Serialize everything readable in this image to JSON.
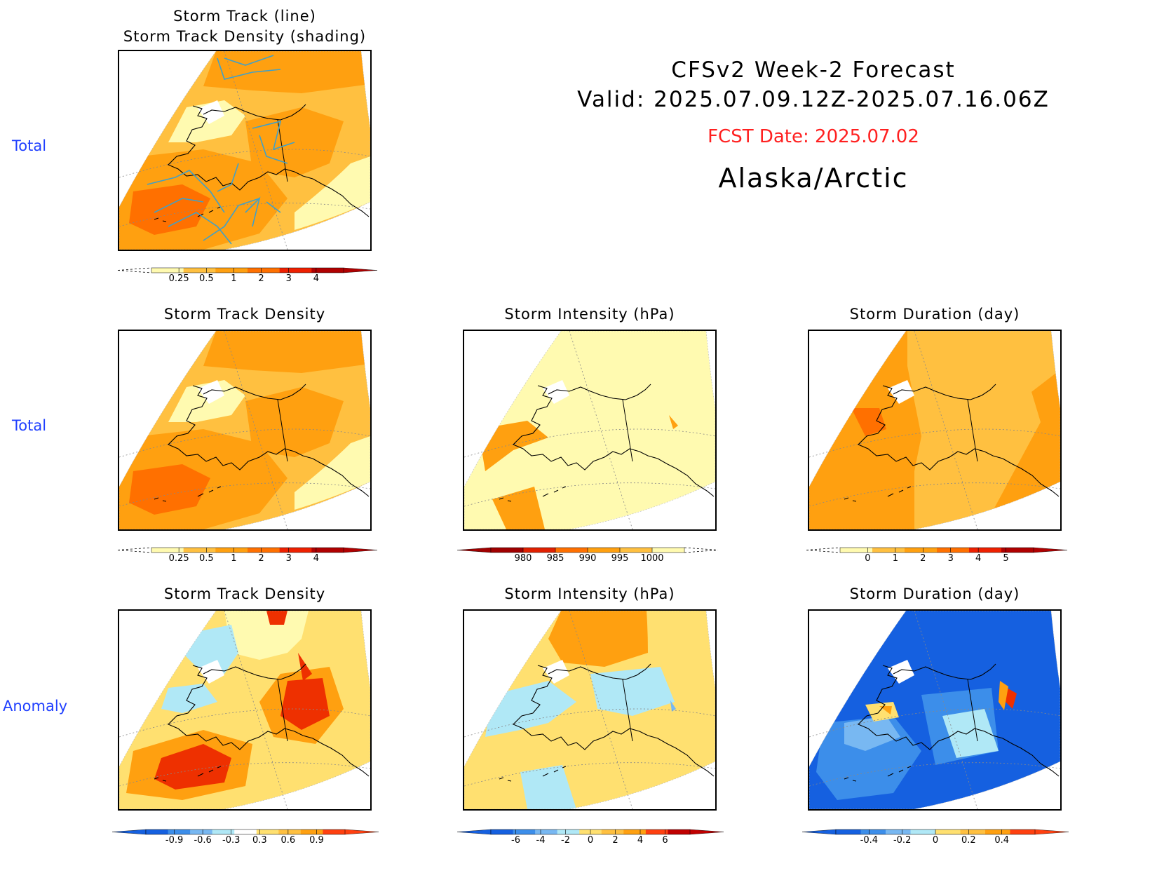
{
  "header": {
    "line1": "CFSv2 Week-2 Forecast",
    "line2": "Valid: 2025.07.09.12Z-2025.07.16.06Z",
    "fcst_date": "FCST Date: 2025.07.02",
    "region": "Alaska/Arctic"
  },
  "row_labels": [
    "Total",
    "Total",
    "Anomaly"
  ],
  "panels": {
    "p1": {
      "title_line1": "Storm Track (line)",
      "title_line2": "Storm Track Density (shading)"
    },
    "p2": {
      "title": "Storm Track Density"
    },
    "p3": {
      "title": "Storm Intensity (hPa)"
    },
    "p4": {
      "title": "Storm Duration (day)"
    },
    "p5": {
      "title": "Storm Track Density"
    },
    "p6": {
      "title": "Storm Intensity (hPa)"
    },
    "p7": {
      "title": "Storm Duration (day)"
    }
  },
  "colorbars": {
    "density_total": {
      "colors": [
        "#fffab0",
        "#ffc040",
        "#ffa010",
        "#ff7000",
        "#ee2000",
        "#b00000"
      ],
      "ticks": [
        "0.25",
        "0.5",
        "1",
        "2",
        "3",
        "4"
      ],
      "open_low": true
    },
    "intensity_total": {
      "colors": [
        "#a00000",
        "#e02000",
        "#ff7000",
        "#ffa010",
        "#ffc040",
        "#fffab0"
      ],
      "ticks": [
        "980",
        "985",
        "990",
        "995",
        "1000"
      ],
      "open_high": true
    },
    "duration_total": {
      "colors": [
        "#fffab0",
        "#ffc040",
        "#ffa010",
        "#ff7000",
        "#ee2000",
        "#b00000"
      ],
      "ticks": [
        "0",
        "1",
        "2",
        "3",
        "4",
        "5"
      ],
      "open_low": true
    },
    "density_anom": {
      "colors": [
        "#1560e0",
        "#3c8eea",
        "#78b8f2",
        "#b0e8f6",
        "#ffffff",
        "#ffe070",
        "#ffc040",
        "#ffa010",
        "#ff4010"
      ],
      "ticks": [
        "-0.9",
        "-0.6",
        "-0.3",
        "0.3",
        "0.6",
        "0.9"
      ]
    },
    "intensity_anom": {
      "colors": [
        "#1560e0",
        "#3c8eea",
        "#78b8f2",
        "#b0e8f6",
        "#ffe070",
        "#ffc040",
        "#ffa010",
        "#ff4010",
        "#c00000"
      ],
      "ticks": [
        "-6",
        "-4",
        "-2",
        "0",
        "2",
        "4",
        "6"
      ]
    },
    "duration_anom": {
      "colors": [
        "#1560e0",
        "#3c8eea",
        "#78b8f2",
        "#b0e8f6",
        "#ffe070",
        "#ffc040",
        "#ffa010",
        "#ff4010"
      ],
      "ticks": [
        "-0.4",
        "-0.2",
        "0",
        "0.2",
        "0.4"
      ]
    }
  },
  "palette": {
    "yellow_light": "#fffab0",
    "yellow": "#ffe070",
    "orange_light": "#ffc040",
    "orange": "#ffa010",
    "orange_dark": "#ff7000",
    "red": "#ee3000",
    "blue_light": "#b0e8f6",
    "blue_mid": "#78b8f2",
    "blue": "#3c8eea",
    "blue_dark": "#1560e0",
    "track_line": "#40a0c8",
    "row_label_color": "#1f3fff",
    "fcst_color": "#ff2020"
  }
}
